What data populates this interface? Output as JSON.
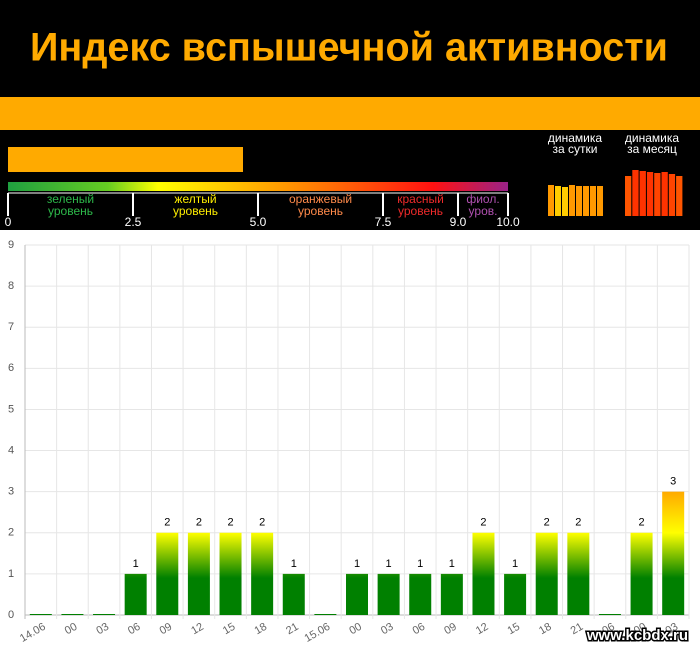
{
  "header": {
    "title": "Индекс вспышечной активности"
  },
  "indicator": {
    "value": 4.7,
    "xlim": [
      0,
      10
    ],
    "color": "#ffaa00",
    "scale_ticks": [
      0,
      2.5,
      {
        "value": 5,
        "label": "5.0"
      },
      7.5,
      {
        "value": 9,
        "label": "9.0"
      },
      {
        "value": 10,
        "label": "10.0"
      }
    ],
    "levels": [
      {
        "label": [
          "зеленый",
          "уровень"
        ],
        "color": "#2db84a"
      },
      {
        "label": [
          "желтый",
          "уровень"
        ],
        "color": "#ffee00"
      },
      {
        "label": [
          "оранжевый",
          "уровень"
        ],
        "color": "#ff8a4a"
      },
      {
        "label": [
          "красный",
          "уровень"
        ],
        "color": "#ee2a2a"
      },
      {
        "label": [
          "фиол.",
          "уров."
        ],
        "color": "#b050b0"
      }
    ]
  },
  "mini_charts": [
    {
      "title": [
        "динамика",
        "за сутки"
      ],
      "ylim": [
        0,
        10
      ],
      "values": [
        3.1,
        3.0,
        2.9,
        3.1,
        3.0,
        3.0,
        3.0,
        3.0
      ],
      "colors": [
        "#ff9900",
        "#ffcc00",
        "#ffcc00",
        "#ff9900",
        "#ff9900",
        "#ff9900",
        "#ff9900",
        "#ff9900"
      ]
    },
    {
      "title": [
        "динамика",
        "за месяц"
      ],
      "ylim": [
        0,
        10
      ],
      "values": [
        4.0,
        4.6,
        4.5,
        4.4,
        4.3,
        4.4,
        4.2,
        4.0
      ],
      "colors": [
        "#ff5500",
        "#ff3300",
        "#ff3300",
        "#ff3300",
        "#ff4400",
        "#ff3300",
        "#ff4400",
        "#ff5500"
      ]
    }
  ],
  "chart_data": {
    "type": "bar",
    "categories": [
      "14.06",
      "00",
      "03",
      "06",
      "09",
      "12",
      "15",
      "18",
      "21",
      "15.06",
      "00",
      "03",
      "06",
      "09",
      "12",
      "15",
      "18",
      "21",
      "16.06",
      "00",
      "03"
    ],
    "values": [
      0,
      0,
      0,
      1,
      2,
      2,
      2,
      2,
      1,
      0,
      1,
      1,
      1,
      1,
      2,
      1,
      2,
      2,
      0,
      2,
      3
    ],
    "ylim": [
      0,
      9
    ],
    "yticks": [
      0,
      1,
      2,
      3,
      4,
      5,
      6,
      7,
      8,
      9
    ],
    "grid": true
  },
  "watermark": "www.kcbdx.ru"
}
